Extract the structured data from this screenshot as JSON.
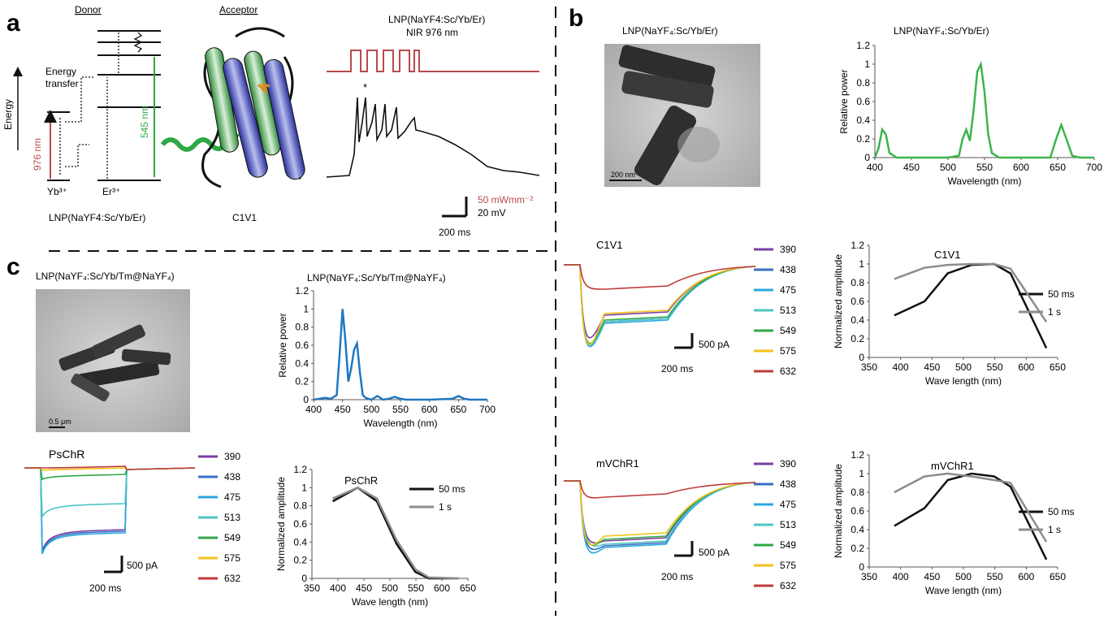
{
  "panel_labels": {
    "a": "a",
    "b": "b",
    "c": "c"
  },
  "colors": {
    "c390": "#7a3fa0",
    "c438": "#3a6fbf",
    "c475": "#29a8e0",
    "c513": "#4fc4c4",
    "c549": "#2fa845",
    "c575": "#f2c21a",
    "c632": "#c0393b",
    "green": "#3cb44b",
    "blue": "#1f78c1",
    "red_pulse": "#b84a4a",
    "black": "#111111",
    "gray": "#8c8c8c"
  },
  "panel_a": {
    "donor": "Donor",
    "acceptor": "Acceptor",
    "energy": "Energy",
    "energy_transfer_1": "Energy",
    "energy_transfer_2": "transfer",
    "nm976": "976 nm",
    "nm545": "545 nm",
    "yb": "Yb³⁺",
    "er": "Er³⁺",
    "lnp_label": "LNP(NaYF4:Sc/Yb/Er)",
    "c1v1_label": "C1V1",
    "trace_title_1": "LNP(NaYF4:Sc/Yb/Er)",
    "trace_title_2": "NIR 976 nm",
    "asterisk": "*",
    "scale_power": "50 mWmm⁻²",
    "scale_mv": "20 mV",
    "scale_ms": "200 ms"
  },
  "panel_b": {
    "tem_title": "LNP(NaYF₄:Sc/Yb/Er)",
    "tem_scale": "200 nm",
    "c1v1_title": "C1V1",
    "mvchr1_title": "mVChR1",
    "scale_pa": "500 pA",
    "scale_ms": "200 ms"
  },
  "panel_c": {
    "tem_title": "LNP(NaYF₄:Sc/Yb/Tm@NaYF₄)",
    "tem_scale": "0.5 μm",
    "pschr_title": "PsChR",
    "scale_pa": "500 pA",
    "scale_ms": "200 ms"
  },
  "wavelength_legend": [
    "390",
    "438",
    "475",
    "513",
    "549",
    "575",
    "632"
  ],
  "chart_data": [
    {
      "id": "b_spectrum",
      "type": "line",
      "title": "LNP(NaYF₄:Sc/Yb/Er)",
      "xlabel": "Wavelength (nm)",
      "ylabel": "Relative power",
      "xlim": [
        400,
        700
      ],
      "ylim": [
        0,
        1.2
      ],
      "xticks": [
        "400",
        "450",
        "500",
        "550",
        "600",
        "650",
        "700"
      ],
      "yticks": [
        "0",
        "0.2",
        "0.4",
        "0.6",
        "0.8",
        "1",
        "1.2"
      ],
      "x": [
        400,
        405,
        410,
        415,
        420,
        430,
        450,
        500,
        515,
        520,
        525,
        530,
        535,
        540,
        545,
        550,
        555,
        560,
        570,
        600,
        640,
        648,
        655,
        662,
        670,
        680,
        700
      ],
      "series": [
        {
          "values": [
            0,
            0.1,
            0.3,
            0.25,
            0.05,
            0,
            0,
            0,
            0.02,
            0.2,
            0.3,
            0.18,
            0.5,
            0.92,
            1.0,
            0.7,
            0.25,
            0.05,
            0,
            0,
            0,
            0.2,
            0.35,
            0.2,
            0.02,
            0,
            0
          ]
        }
      ]
    },
    {
      "id": "c_spectrum",
      "type": "line",
      "title": "LNP(NaYF₄:Sc/Yb/Tm@NaYF₄)",
      "xlabel": "Wavelength (nm)",
      "ylabel": "Relative power",
      "xlim": [
        400,
        700
      ],
      "ylim": [
        0,
        1.2
      ],
      "xticks": [
        "400",
        "450",
        "500",
        "550",
        "600",
        "650",
        "700"
      ],
      "yticks": [
        "0",
        "0.2",
        "0.4",
        "0.6",
        "0.8",
        "1",
        "1.2"
      ],
      "x": [
        400,
        410,
        420,
        430,
        440,
        445,
        450,
        455,
        460,
        465,
        470,
        475,
        480,
        485,
        490,
        500,
        510,
        520,
        530,
        540,
        550,
        560,
        600,
        640,
        650,
        660,
        670,
        700
      ],
      "series": [
        {
          "values": [
            0,
            0.01,
            0.02,
            0.01,
            0.05,
            0.5,
            1.0,
            0.65,
            0.2,
            0.35,
            0.55,
            0.62,
            0.3,
            0.05,
            0.02,
            0,
            0.04,
            0,
            0.01,
            0.03,
            0.01,
            0,
            0,
            0.01,
            0.04,
            0.01,
            0,
            0
          ]
        }
      ]
    },
    {
      "id": "b_c1v1_amp",
      "type": "line",
      "title": "C1V1",
      "xlabel": "Wave length (nm)",
      "ylabel": "Normalized  amplitude",
      "xlim": [
        350,
        650
      ],
      "ylim": [
        0,
        1.2
      ],
      "xticks": [
        "350",
        "400",
        "450",
        "500",
        "550",
        "600",
        "650"
      ],
      "yticks": [
        "0",
        "0.2",
        "0.4",
        "0.6",
        "0.8",
        "1",
        "1.2"
      ],
      "x": [
        390,
        438,
        475,
        513,
        549,
        575,
        632
      ],
      "series": [
        {
          "name": "50 ms",
          "values": [
            0.45,
            0.6,
            0.9,
            0.99,
            1.0,
            0.9,
            0.1
          ]
        },
        {
          "name": "1 s",
          "values": [
            0.84,
            0.96,
            0.99,
            1.0,
            1.0,
            0.95,
            0.38
          ]
        }
      ]
    },
    {
      "id": "b_mvchr1_amp",
      "type": "line",
      "title": "mVChR1",
      "xlabel": "Wave length (nm)",
      "ylabel": "Normalized  amplitude",
      "xlim": [
        350,
        650
      ],
      "ylim": [
        0,
        1.2
      ],
      "xticks": [
        "350",
        "400",
        "450",
        "500",
        "550",
        "600",
        "650"
      ],
      "yticks": [
        "0",
        "0.2",
        "0.4",
        "0.6",
        "0.8",
        "1",
        "1.2"
      ],
      "x": [
        390,
        438,
        475,
        513,
        549,
        575,
        632
      ],
      "series": [
        {
          "name": "50 ms",
          "values": [
            0.44,
            0.63,
            0.93,
            1.0,
            0.97,
            0.86,
            0.08
          ]
        },
        {
          "name": "1 s",
          "values": [
            0.8,
            0.97,
            1.0,
            0.97,
            0.93,
            0.9,
            0.27
          ]
        }
      ]
    },
    {
      "id": "c_pschr_amp",
      "type": "line",
      "title": "PsChR",
      "xlabel": "Wave length (nm)",
      "ylabel": "Normalized  amplitude",
      "xlim": [
        350,
        650
      ],
      "ylim": [
        0,
        1.2
      ],
      "xticks": [
        "350",
        "400",
        "450",
        "500",
        "550",
        "600",
        "650"
      ],
      "yticks": [
        "0",
        "0.2",
        "0.4",
        "0.6",
        "0.8",
        "1",
        "1.2"
      ],
      "x": [
        390,
        438,
        475,
        513,
        549,
        575,
        632
      ],
      "series": [
        {
          "name": "50 ms",
          "values": [
            0.85,
            1.0,
            0.85,
            0.38,
            0.07,
            0.0,
            0.0
          ]
        },
        {
          "name": "1 s",
          "values": [
            0.88,
            1.0,
            0.88,
            0.42,
            0.1,
            0.01,
            0.0
          ]
        }
      ]
    }
  ]
}
